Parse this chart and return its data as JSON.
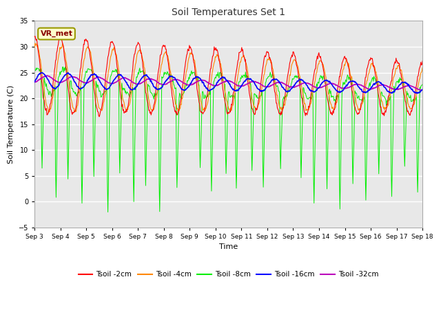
{
  "title": "Soil Temperatures Set 1",
  "xlabel": "Time",
  "ylabel": "Soil Temperature (C)",
  "ylim": [
    -5,
    35
  ],
  "yticks": [
    -5,
    0,
    5,
    10,
    15,
    20,
    25,
    30,
    35
  ],
  "xtick_labels": [
    "Sep 3",
    "Sep 4",
    "Sep 5",
    "Sep 6",
    "Sep 7",
    "Sep 8",
    "Sep 9",
    "Sep 10",
    "Sep 11",
    "Sep 12",
    "Sep 13",
    "Sep 14",
    "Sep 15",
    "Sep 16",
    "Sep 17",
    "Sep 18"
  ],
  "colors": {
    "Tsoil -2cm": "#ff0000",
    "Tsoil -4cm": "#ff8800",
    "Tsoil -8cm": "#00ee00",
    "Tsoil -16cm": "#0000ff",
    "Tsoil -32cm": "#bb00bb"
  },
  "fig_bg": "#ffffff",
  "plot_bg": "#e8e8e8",
  "grid_color": "#ffffff",
  "annotation_text": "VR_met",
  "annotation_bg": "#ffffcc",
  "annotation_border": "#999900",
  "annotation_text_color": "#880000"
}
